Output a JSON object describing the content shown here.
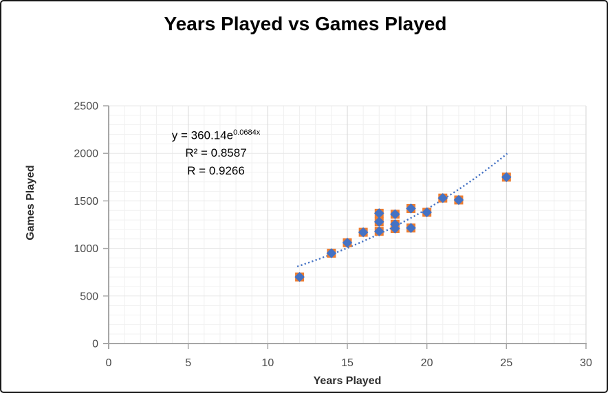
{
  "chart_data": {
    "type": "scatter",
    "title": "Years Played vs Games Played",
    "xlabel": "Years Played",
    "ylabel": "Games Played",
    "x_axis": {
      "min": 0,
      "max": 30,
      "major_step": 5,
      "minor_step": 1,
      "tick_labels": [
        "0",
        "5",
        "10",
        "15",
        "20",
        "25",
        "30"
      ]
    },
    "y_axis": {
      "min": 0,
      "max": 2500,
      "major_step": 500,
      "minor_step": 100,
      "tick_labels": [
        "0",
        "500",
        "1000",
        "1500",
        "2000",
        "2500"
      ]
    },
    "points": [
      [
        12,
        700
      ],
      [
        14,
        950
      ],
      [
        15,
        1060
      ],
      [
        16,
        1170
      ],
      [
        17,
        1180
      ],
      [
        17,
        1280
      ],
      [
        17,
        1370
      ],
      [
        18,
        1210
      ],
      [
        18,
        1255
      ],
      [
        18,
        1360
      ],
      [
        19,
        1215
      ],
      [
        19,
        1420
      ],
      [
        20,
        1380
      ],
      [
        21,
        1530
      ],
      [
        22,
        1510
      ],
      [
        25,
        1750
      ]
    ],
    "trendline": {
      "type": "exponential",
      "a": 360.14,
      "b": 0.0684,
      "x_start": 11.85,
      "x_end": 25.05
    },
    "annotation": {
      "equation_base": "y = 360.14e",
      "equation_exponent": "0.0684x",
      "r_squared": "R² = 0.8587",
      "r": "R = 0.9266"
    },
    "grid": {
      "minor": true,
      "major": true
    },
    "legend_position": "none",
    "colors": {
      "marker_square": "#ED7D31",
      "marker_diamond": "#4472C4",
      "trendline": "#4472C4",
      "grid_minor_v": "#EFEFEF",
      "grid_major_v": "#D5D5D5",
      "grid_minor_h": "#F1F1F1",
      "grid_major_h": "#E7E7E7",
      "axis_line": "#A6A6A6"
    }
  }
}
